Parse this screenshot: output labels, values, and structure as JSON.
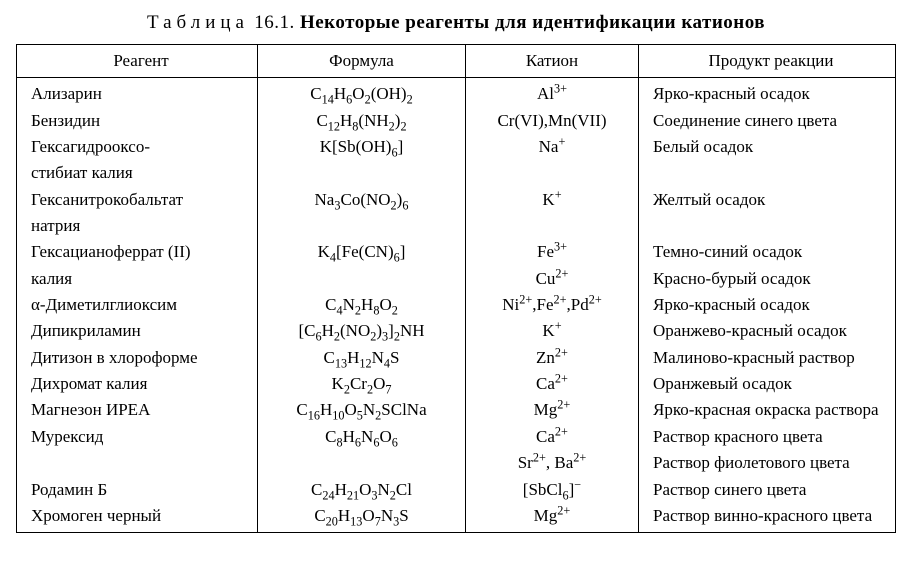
{
  "caption_prefix": "Таблица",
  "caption_number": "16.1.",
  "caption_title": "Некоторые реагенты для идентификации катионов",
  "columns": [
    "Реагент",
    "Формула",
    "Катион",
    "Продукт реакции"
  ],
  "rows": [
    {
      "reagent": "Ализарин",
      "formula": "C<sub>14</sub>H<sub>6</sub>O<sub>2</sub>(OH)<sub>2</sub>",
      "cation": "Al<sup>3+</sup>",
      "product": "Ярко-красный осадок"
    },
    {
      "reagent": "Бензидин",
      "formula": "C<sub>12</sub>H<sub>8</sub>(NH<sub>2</sub>)<sub>2</sub>",
      "cation": "Cr(VI),Mn(VII)",
      "product": "Соединение синего цвета"
    },
    {
      "reagent": "Гексагидрооксо-\nстибиат калия",
      "formula": "K[Sb(OH)<sub>6</sub>]",
      "cation": "Na<sup>+</sup>",
      "product": "Белый осадок"
    },
    {
      "reagent": "Гексанитрокобальтат\nнатрия",
      "formula": "Na<sub>3</sub>Co(NO<sub>2</sub>)<sub>6</sub>",
      "cation": "K<sup>+</sup>",
      "product": "Желтый осадок"
    },
    {
      "reagent": "Гексацианоферрат (II)\nкалия",
      "formula": "K<sub>4</sub>[Fe(CN)<sub>6</sub>]",
      "cation": "Fe<sup>3+</sup>\nCu<sup>2+</sup>",
      "product": "Темно-синий осадок\nКрасно-бурый осадок"
    },
    {
      "reagent": "α-Диметилглиоксим",
      "formula": "C<sub>4</sub>N<sub>2</sub>H<sub>8</sub>O<sub>2</sub>",
      "cation": "Ni<sup>2+</sup>,Fe<sup>2+</sup>,Pd<sup>2+</sup>",
      "product": "Ярко-красный осадок"
    },
    {
      "reagent": "Дипикриламин",
      "formula": "[C<sub>6</sub>H<sub>2</sub>(NO<sub>2</sub>)<sub>3</sub>]<sub>2</sub>NH",
      "cation": "K<sup>+</sup>",
      "product": "Оранжево-красный осадок"
    },
    {
      "reagent": "Дитизон в хлороформе",
      "formula": "C<sub>13</sub>H<sub>12</sub>N<sub>4</sub>S",
      "cation": "Zn<sup>2+</sup>",
      "product": "Малиново-красный раствор"
    },
    {
      "reagent": "Дихромат калия",
      "formula": "K<sub>2</sub>Cr<sub>2</sub>O<sub>7</sub>",
      "cation": "Ca<sup>2+</sup>",
      "product": "Оранжевый осадок"
    },
    {
      "reagent": "Магнезон ИРЕА",
      "formula": "C<sub>16</sub>H<sub>10</sub>O<sub>5</sub>N<sub>2</sub>SClNa",
      "cation": "Mg<sup>2+</sup>",
      "product": "Ярко-красная окраска раствора"
    },
    {
      "reagent": "Мурексид",
      "formula": "C<sub>8</sub>H<sub>6</sub>N<sub>6</sub>O<sub>6</sub>",
      "cation": "Ca<sup>2+</sup>\nSr<sup>2+</sup>, Ba<sup>2+</sup>",
      "product": "Раствор красного цвета\nРаствор фиолетового цвета"
    },
    {
      "reagent": "Родамин Б",
      "formula": "C<sub>24</sub>H<sub>21</sub>O<sub>3</sub>N<sub>2</sub>Cl",
      "cation": "[SbCl<sub>6</sub>]<sup>−</sup>",
      "product": "Раствор синего цвета"
    },
    {
      "reagent": "Хромоген черный",
      "formula": "C<sub>20</sub>H<sub>13</sub>O<sub>7</sub>N<sub>3</sub>S",
      "cation": "Mg<sup>2+</sup>",
      "product": "Раствор винно-красного цвета"
    }
  ]
}
